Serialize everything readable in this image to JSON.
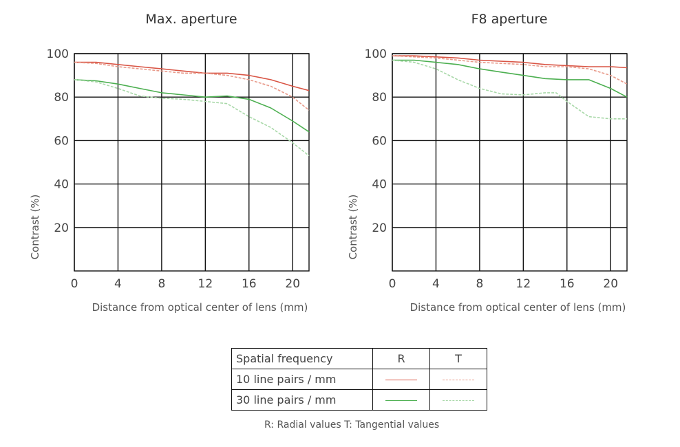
{
  "colors": {
    "radial_10": "#d95545",
    "tangential_10": "#e89a8a",
    "radial_30": "#4caf50",
    "tangential_30": "#a8d8a8"
  },
  "chart_data": [
    {
      "type": "line",
      "title": "Max. aperture",
      "xlabel": "Distance from optical center of lens (mm)",
      "ylabel": "Contrast (%)",
      "xlim": [
        0,
        21.5
      ],
      "ylim": [
        0,
        100
      ],
      "xticks": [
        "0",
        "4",
        "8",
        "12",
        "16",
        "20"
      ],
      "yticks": [
        "20",
        "40",
        "60",
        "80",
        "100"
      ],
      "grid": true,
      "series": [
        {
          "key": "radial_10",
          "x": [
            0,
            2,
            4,
            6,
            8,
            10,
            12,
            14,
            16,
            18,
            20,
            21.5
          ],
          "y": [
            96,
            96,
            95,
            94,
            93,
            92,
            91,
            91,
            90,
            88,
            85,
            83
          ]
        },
        {
          "key": "tangential_10",
          "x": [
            0,
            2,
            4,
            6,
            8,
            10,
            12,
            14,
            16,
            18,
            20,
            21.5
          ],
          "y": [
            96,
            95.5,
            94,
            93,
            92,
            91,
            91,
            90,
            88,
            85,
            80,
            74
          ]
        },
        {
          "key": "radial_30",
          "x": [
            0,
            2,
            4,
            6,
            8,
            10,
            12,
            14,
            16,
            18,
            20,
            21.5
          ],
          "y": [
            88,
            87.5,
            86,
            84,
            82,
            81,
            80,
            80.5,
            79,
            75,
            69,
            64
          ]
        },
        {
          "key": "tangential_30",
          "x": [
            0,
            2,
            4,
            6,
            8,
            10,
            12,
            14,
            16,
            18,
            20,
            21.5
          ],
          "y": [
            88,
            87,
            84,
            80.5,
            79.5,
            79,
            78,
            77,
            71,
            66,
            59,
            53
          ]
        }
      ]
    },
    {
      "type": "line",
      "title": "F8 aperture",
      "xlabel": "Distance from optical center of lens (mm)",
      "ylabel": "Contrast (%)",
      "xlim": [
        0,
        21.5
      ],
      "ylim": [
        0,
        100
      ],
      "xticks": [
        "0",
        "4",
        "8",
        "12",
        "16",
        "20"
      ],
      "yticks": [
        "20",
        "40",
        "60",
        "80",
        "100"
      ],
      "grid": true,
      "series": [
        {
          "key": "radial_10",
          "x": [
            0,
            2,
            4,
            6,
            8,
            10,
            12,
            14,
            16,
            18,
            20,
            21.5
          ],
          "y": [
            99,
            99,
            98.5,
            98,
            97,
            96.5,
            96,
            95,
            94.5,
            94,
            94,
            93.5
          ]
        },
        {
          "key": "tangential_10",
          "x": [
            0,
            2,
            4,
            6,
            8,
            10,
            12,
            14,
            16,
            18,
            20,
            21.5
          ],
          "y": [
            99,
            98.5,
            98,
            97,
            96,
            95.5,
            95,
            94,
            94,
            93,
            90,
            86
          ]
        },
        {
          "key": "radial_30",
          "x": [
            0,
            2,
            4,
            6,
            8,
            10,
            12,
            14,
            16,
            18,
            20,
            21.5
          ],
          "y": [
            97,
            97,
            96,
            95,
            93,
            91.5,
            90,
            88.5,
            88,
            88,
            84,
            80
          ]
        },
        {
          "key": "tangential_30",
          "x": [
            0,
            2,
            4,
            6,
            8,
            10,
            12,
            14,
            15,
            16,
            18,
            20,
            21.5
          ],
          "y": [
            97,
            96,
            93,
            88,
            84,
            81.5,
            81,
            82,
            82,
            78,
            71,
            70,
            70
          ]
        }
      ]
    }
  ],
  "legend": {
    "header": "Spatial frequency",
    "col_r": "R",
    "col_t": "T",
    "row_10": "10 line pairs / mm",
    "row_30": "30 line pairs / mm",
    "note": "R: Radial values  T: Tangential values"
  }
}
